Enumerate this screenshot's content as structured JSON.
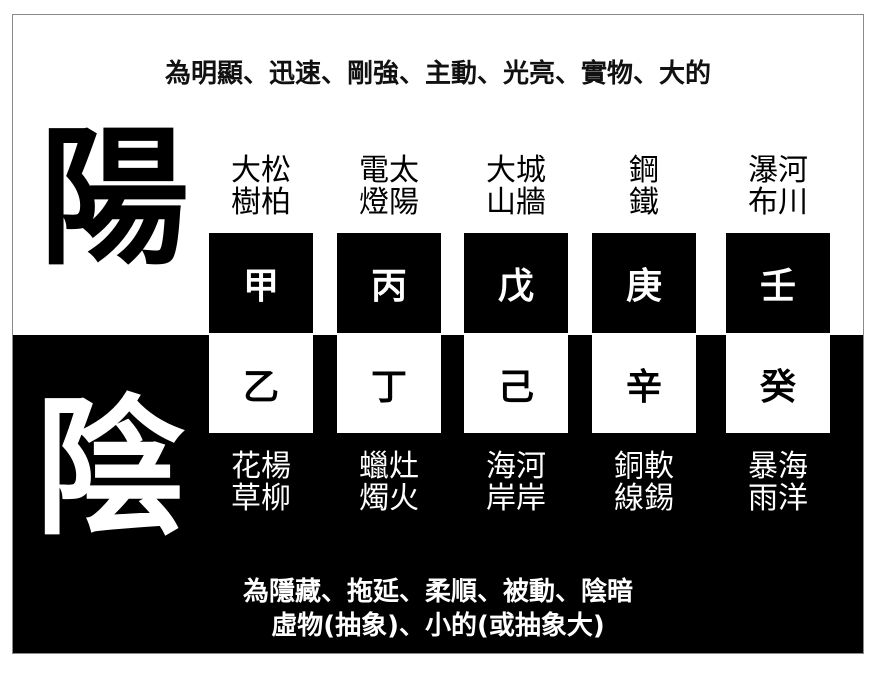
{
  "top_caption": "為明顯、迅速、剛強、主動、光亮、實物、大的",
  "bottom_caption": {
    "line1": "為隱藏、拖延、柔順、被動、陰暗",
    "line2": "虛物(抽象)、小的(或抽象大)"
  },
  "yang_char": "陽",
  "yin_char": "陰",
  "columns": [
    {
      "yang_words": [
        "大松",
        "樹柏"
      ],
      "yang_stem": "甲",
      "yin_stem": "乙",
      "yin_words": [
        "花楊",
        "草柳"
      ]
    },
    {
      "yang_words": [
        "電太",
        "燈陽"
      ],
      "yang_stem": "丙",
      "yin_stem": "丁",
      "yin_words": [
        "蠟灶",
        "燭火"
      ]
    },
    {
      "yang_words": [
        "大城",
        "山牆"
      ],
      "yang_stem": "戊",
      "yin_stem": "己",
      "yin_words": [
        "海河",
        "岸岸"
      ]
    },
    {
      "yang_words": [
        "鋼",
        "鐵"
      ],
      "yang_stem": "庚",
      "yin_stem": "辛",
      "yin_words": [
        "銅軟",
        "線錫"
      ]
    },
    {
      "yang_words": [
        "瀑河",
        "布川"
      ],
      "yang_stem": "壬",
      "yin_stem": "癸",
      "yin_words": [
        "暴海",
        "雨洋"
      ]
    }
  ]
}
